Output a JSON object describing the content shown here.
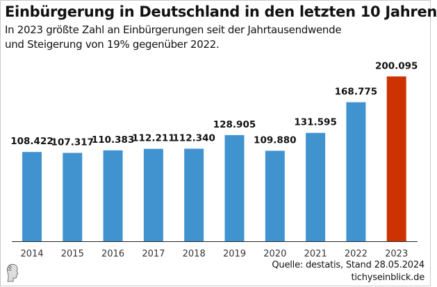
{
  "chart_data": {
    "type": "bar",
    "title": "Einbürgerung in Deutschland in den letzten 10 Jahren",
    "subtitle": [
      "In 2023 größte Zahl an Einbürgerungen seit der Jahrtausendwende",
      "und Steigerung von 19% gegenüber 2022."
    ],
    "categories": [
      "2014",
      "2015",
      "2016",
      "2017",
      "2018",
      "2019",
      "2020",
      "2021",
      "2022",
      "2023"
    ],
    "values": [
      108422,
      107317,
      110383,
      112211,
      112340,
      128905,
      109880,
      131595,
      168775,
      200095
    ],
    "data_labels": [
      "108.422",
      "107.317",
      "110.383",
      "112.211",
      "112.340",
      "128.905",
      "109.880",
      "131.595",
      "168.775",
      "200.095"
    ],
    "xlabel": "",
    "ylabel": "",
    "ylim": [
      0,
      250000
    ],
    "grid": false,
    "colors": {
      "default": "#4193d0",
      "highlight": "#cc3300"
    },
    "highlight_category": "2023"
  },
  "footer": {
    "source": "Quelle: destatis, Stand 28.05.2024",
    "site": "tichyseinblick.de",
    "logo_icon": "classical-head-logo"
  }
}
